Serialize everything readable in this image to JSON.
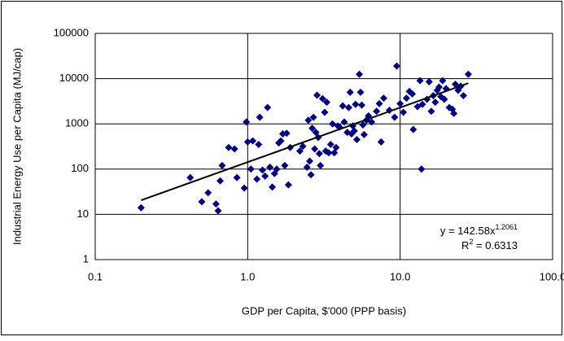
{
  "chart_data": {
    "type": "scatter",
    "x_label": "GDP per Capita, $'000 (PPP basis)",
    "y_label": "Industrial Energy Use per Capita (MJ/cap)",
    "xscale": "log",
    "yscale": "log",
    "grid": true,
    "xlim": [
      0.1,
      100
    ],
    "ylim": [
      1,
      100000
    ],
    "xticks": [
      0.1,
      {
        "value": 1,
        "label": "1.0"
      },
      {
        "value": 10,
        "label": "10.0"
      },
      {
        "value": 100,
        "label": "100.0"
      }
    ],
    "yticks": [
      1,
      10,
      100,
      1000,
      10000,
      100000
    ],
    "series": [
      {
        "color": "#00007f",
        "x": [
          0.2,
          0.42,
          0.5,
          0.55,
          0.62,
          0.64,
          0.66,
          0.68,
          0.75,
          0.82,
          0.85,
          0.95,
          0.98,
          1.0,
          1.05,
          1.08,
          1.15,
          1.18,
          1.2,
          1.25,
          1.3,
          1.35,
          1.4,
          1.45,
          1.5,
          1.55,
          1.6,
          1.65,
          1.7,
          1.75,
          1.8,
          1.85,
          1.9,
          2.2,
          2.3,
          2.45,
          2.5,
          2.55,
          2.6,
          2.65,
          2.7,
          2.75,
          2.8,
          2.85,
          2.9,
          2.95,
          3.0,
          3.1,
          3.2,
          3.25,
          3.3,
          3.4,
          3.5,
          3.6,
          3.7,
          3.8,
          3.9,
          4.0,
          4.2,
          4.3,
          4.5,
          4.6,
          4.7,
          4.8,
          4.9,
          5.0,
          5.1,
          5.2,
          5.4,
          5.5,
          5.6,
          5.7,
          5.8,
          6.0,
          6.2,
          6.5,
          7.0,
          7.3,
          7.5,
          7.8,
          8.5,
          9.2,
          9.5,
          10,
          10.5,
          11,
          11.5,
          12,
          12.2,
          13,
          13.5,
          13.8,
          14,
          15,
          15.5,
          16,
          16.5,
          17,
          17.5,
          18,
          18.5,
          19,
          19.5,
          20,
          21,
          22,
          22.5,
          23,
          24,
          25,
          26,
          28
        ],
        "values": [
          14,
          65,
          19,
          30,
          17,
          12,
          55,
          120,
          300,
          280,
          65,
          38,
          1100,
          400,
          100,
          420,
          60,
          350,
          1400,
          95,
          70,
          2300,
          110,
          40,
          80,
          100,
          380,
          420,
          600,
          120,
          620,
          45,
          300,
          250,
          320,
          110,
          1200,
          150,
          75,
          800,
          1400,
          280,
          650,
          4300,
          500,
          220,
          120,
          3600,
          1800,
          250,
          3000,
          230,
          350,
          1000,
          230,
          300,
          900,
          850,
          2500,
          1100,
          650,
          2300,
          5000,
          600,
          900,
          700,
          2700,
          450,
          12500,
          5000,
          2600,
          950,
          580,
          1200,
          1500,
          1100,
          1900,
          2800,
          400,
          3700,
          2000,
          1400,
          19000,
          2800,
          1800,
          3700,
          5200,
          4600,
          750,
          2400,
          9000,
          100,
          2700,
          3500,
          8500,
          1900,
          4200,
          3000,
          5500,
          6500,
          4000,
          9000,
          3500,
          6000,
          2300,
          2100,
          1700,
          7500,
          5500,
          6800,
          4200,
          12500
        ]
      }
    ],
    "trendline": {
      "color": "#000000",
      "x": [
        0.2,
        28
      ],
      "values": [
        20.5,
        7935
      ]
    },
    "equation": {
      "text": "y = 142.58x",
      "exponent": "1.2061"
    },
    "r_squared": {
      "text": "R",
      "exponent": "2",
      "rest": " = 0.6313"
    }
  }
}
